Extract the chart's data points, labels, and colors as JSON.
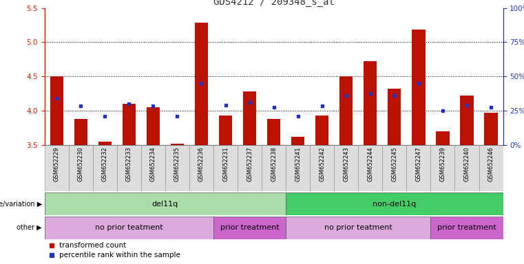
{
  "title": "GDS4212 / 209348_s_at",
  "samples": [
    "GSM652229",
    "GSM652230",
    "GSM652232",
    "GSM652233",
    "GSM652234",
    "GSM652235",
    "GSM652236",
    "GSM652231",
    "GSM652237",
    "GSM652238",
    "GSM652241",
    "GSM652242",
    "GSM652243",
    "GSM652244",
    "GSM652245",
    "GSM652247",
    "GSM652239",
    "GSM652240",
    "GSM652246"
  ],
  "red_values": [
    4.5,
    3.88,
    3.55,
    4.1,
    4.05,
    3.52,
    5.28,
    3.93,
    4.28,
    3.88,
    3.62,
    3.93,
    4.5,
    4.72,
    4.32,
    5.18,
    3.7,
    4.22,
    3.97
  ],
  "blue_values": [
    4.18,
    4.07,
    3.92,
    4.1,
    4.07,
    3.92,
    4.4,
    4.08,
    4.12,
    4.05,
    3.92,
    4.07,
    4.22,
    4.25,
    4.22,
    4.4,
    4.0,
    4.08,
    4.05
  ],
  "ylim_left": [
    3.5,
    5.5
  ],
  "ylim_right": [
    0,
    100
  ],
  "yticks_left": [
    3.5,
    4.0,
    4.5,
    5.0,
    5.5
  ],
  "yticks_right": [
    0,
    25,
    50,
    75,
    100
  ],
  "ytick_labels_right": [
    "0%",
    "25%",
    "50%",
    "75%",
    "100%"
  ],
  "hlines": [
    4.0,
    4.5,
    5.0
  ],
  "bar_bottom": 3.5,
  "genotype_groups": [
    {
      "label": "del11q",
      "start": 0,
      "end": 10,
      "color": "#aaddaa"
    },
    {
      "label": "non-del11q",
      "start": 10,
      "end": 19,
      "color": "#44cc66"
    }
  ],
  "other_groups": [
    {
      "label": "no prior teatment",
      "start": 0,
      "end": 7,
      "color": "#ddaadd"
    },
    {
      "label": "prior treatment",
      "start": 7,
      "end": 10,
      "color": "#cc66cc"
    },
    {
      "label": "no prior teatment",
      "start": 10,
      "end": 16,
      "color": "#ddaadd"
    },
    {
      "label": "prior treatment",
      "start": 16,
      "end": 19,
      "color": "#cc66cc"
    }
  ],
  "red_color": "#bb1100",
  "blue_color": "#2233bb",
  "bar_width": 0.55,
  "title_color": "#333333",
  "left_axis_color": "#cc2200",
  "right_axis_color": "#2233bb",
  "legend_items": [
    {
      "label": "transformed count",
      "color": "#bb1100"
    },
    {
      "label": "percentile rank within the sample",
      "color": "#2233bb"
    }
  ],
  "genotype_label": "genotype/variation",
  "other_label": "other"
}
